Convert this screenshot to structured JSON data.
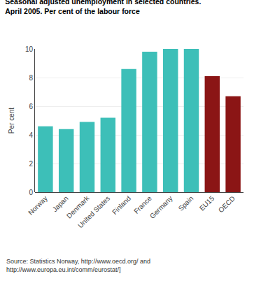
{
  "chart_data": {
    "type": "bar",
    "title": "Seasonal adjusted unemployment in selected countries.",
    "subtitle": "April 2005. Per cent of the labour force",
    "ylabel": "Per cent",
    "categories": [
      "Norway",
      "Japan",
      "Denmark",
      "United States",
      "Finland",
      "France",
      "Germany",
      "Spain",
      "EU15",
      "OECD"
    ],
    "values": [
      4.6,
      4.4,
      4.9,
      5.2,
      8.6,
      9.8,
      10.0,
      10.0,
      8.1,
      6.7
    ],
    "colors": [
      "#3dbfb8",
      "#3dbfb8",
      "#3dbfb8",
      "#3dbfb8",
      "#3dbfb8",
      "#3dbfb8",
      "#3dbfb8",
      "#3dbfb8",
      "#8b1515",
      "#8b1515"
    ],
    "ylim": [
      0,
      10
    ],
    "yticks": [
      0,
      2,
      4,
      6,
      8,
      10
    ],
    "grid": true,
    "annotations": [
      "Source: Statistics Norway, http://www.oecd.org/ and\nhttp://www.europa.eu.int/comm/eurostat/]"
    ]
  }
}
